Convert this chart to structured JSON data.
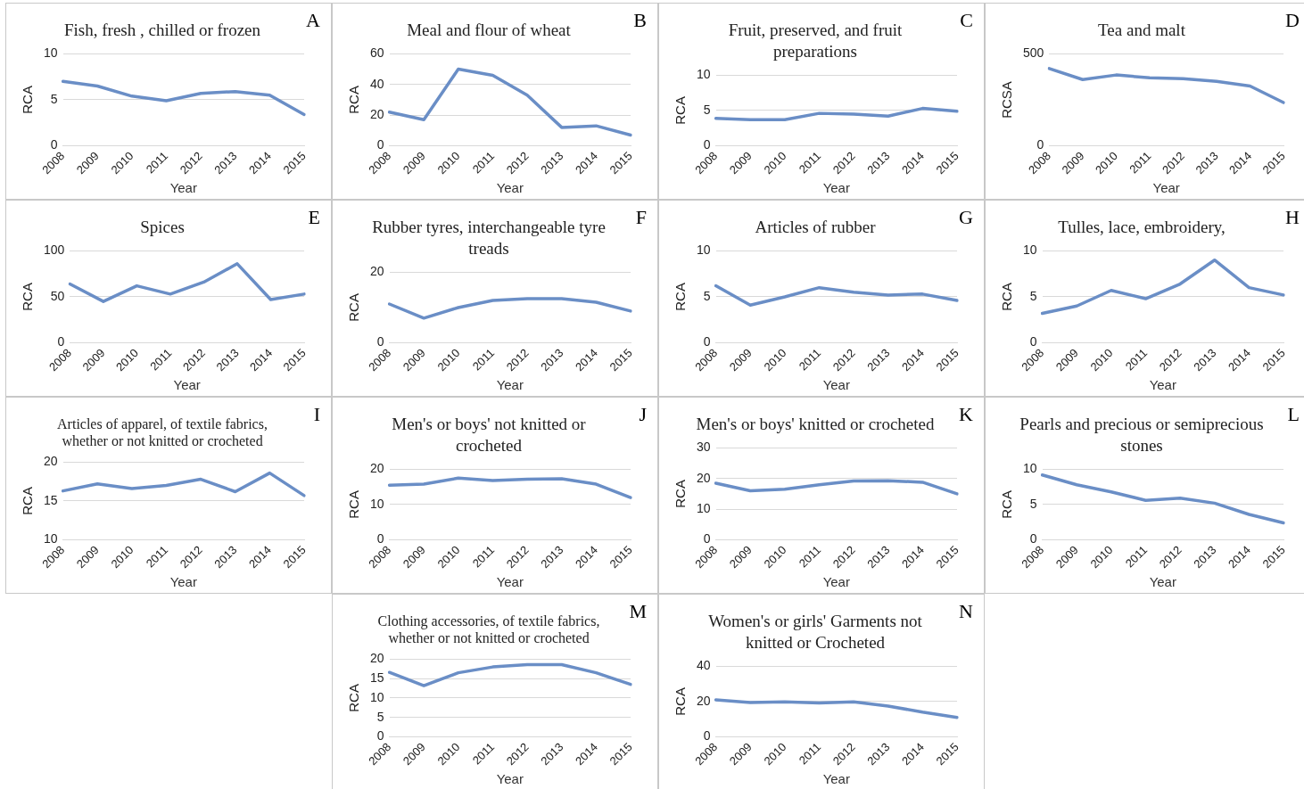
{
  "chart_data": [
    {
      "type": "line",
      "title": "Fish, fresh , chilled or frozen",
      "xlabel": "Year",
      "ylabel": "RCA",
      "annotations": [
        "A"
      ],
      "categories": [
        "2008",
        "2009",
        "2010",
        "2011",
        "2012",
        "2013",
        "2014",
        "2015"
      ],
      "series": [
        {
          "color": "#6a8ec6",
          "values": [
            7,
            6.5,
            5.4,
            4.9,
            5.7,
            5.9,
            5.5,
            3.4
          ]
        }
      ],
      "ylim": [
        0,
        10
      ],
      "yticks": [
        0,
        5,
        10
      ],
      "grid": "y",
      "legend": false,
      "marker": "none"
    },
    {
      "type": "line",
      "title": "Meal and flour of wheat",
      "xlabel": "Year",
      "ylabel": "RCA",
      "annotations": [
        "B"
      ],
      "categories": [
        "2008",
        "2009",
        "2010",
        "2011",
        "2012",
        "2013",
        "2014",
        "2015"
      ],
      "series": [
        {
          "color": "#6a8ec6",
          "values": [
            22,
            17,
            50,
            46,
            33,
            12,
            13,
            7
          ]
        }
      ],
      "ylim": [
        0,
        60
      ],
      "yticks": [
        0,
        20,
        40,
        60
      ],
      "grid": "y",
      "legend": false,
      "marker": "none"
    },
    {
      "type": "line",
      "title": "Fruit, preserved, and fruit preparations",
      "xlabel": "Year",
      "ylabel": "RCA",
      "annotations": [
        "C"
      ],
      "categories": [
        "2008",
        "2009",
        "2010",
        "2011",
        "2012",
        "2013",
        "2014",
        "2015"
      ],
      "series": [
        {
          "color": "#6a8ec6",
          "values": [
            3.9,
            3.7,
            3.7,
            4.6,
            4.5,
            4.2,
            5.3,
            4.9
          ]
        }
      ],
      "ylim": [
        0,
        10
      ],
      "yticks": [
        0,
        5,
        10
      ],
      "grid": "y",
      "legend": false,
      "marker": "none"
    },
    {
      "type": "line",
      "title": "Tea and malt",
      "xlabel": "Year",
      "ylabel": "RCSA",
      "annotations": [
        "D"
      ],
      "categories": [
        "2008",
        "2009",
        "2010",
        "2011",
        "2012",
        "2013",
        "2014",
        "2015"
      ],
      "series": [
        {
          "color": "#6a8ec6",
          "values": [
            420,
            360,
            385,
            370,
            365,
            350,
            325,
            235
          ]
        }
      ],
      "ylim": [
        0,
        500
      ],
      "yticks": [
        0,
        500
      ],
      "grid": "y",
      "legend": false,
      "marker": "none"
    },
    {
      "type": "line",
      "title": "Spices",
      "xlabel": "Year",
      "ylabel": "RCA",
      "annotations": [
        "E"
      ],
      "categories": [
        "2008",
        "2009",
        "2010",
        "2011",
        "2012",
        "2013",
        "2014",
        "2015"
      ],
      "series": [
        {
          "color": "#6a8ec6",
          "values": [
            64,
            45,
            62,
            53,
            66,
            86,
            47,
            53
          ]
        }
      ],
      "ylim": [
        0,
        100
      ],
      "yticks": [
        0,
        50,
        100
      ],
      "grid": "y",
      "legend": false,
      "marker": "none"
    },
    {
      "type": "line",
      "title": "Rubber tyres, interchangeable tyre treads",
      "xlabel": "Year",
      "ylabel": "RCA",
      "annotations": [
        "F"
      ],
      "categories": [
        "2008",
        "2009",
        "2010",
        "2011",
        "2012",
        "2013",
        "2014",
        "2015"
      ],
      "series": [
        {
          "color": "#6a8ec6",
          "values": [
            11,
            7,
            10,
            12,
            12.5,
            12.5,
            11.5,
            9
          ]
        }
      ],
      "ylim": [
        0,
        20
      ],
      "yticks": [
        0,
        20
      ],
      "grid": "y",
      "legend": false,
      "marker": "none"
    },
    {
      "type": "line",
      "title": "Articles of rubber",
      "xlabel": "Year",
      "ylabel": "RCA",
      "annotations": [
        "G"
      ],
      "categories": [
        "2008",
        "2009",
        "2010",
        "2011",
        "2012",
        "2013",
        "2014",
        "2015"
      ],
      "series": [
        {
          "color": "#6a8ec6",
          "values": [
            6.2,
            4.1,
            5,
            6,
            5.5,
            5.2,
            5.3,
            4.6
          ]
        }
      ],
      "ylim": [
        0,
        10
      ],
      "yticks": [
        0,
        5,
        10
      ],
      "grid": "y",
      "legend": false,
      "marker": "none"
    },
    {
      "type": "line",
      "title": "Tulles, lace, embroidery,",
      "xlabel": "Year",
      "ylabel": "RCA",
      "annotations": [
        "H"
      ],
      "categories": [
        "2008",
        "2009",
        "2010",
        "2011",
        "2012",
        "2013",
        "2014",
        "2015"
      ],
      "series": [
        {
          "color": "#6a8ec6",
          "values": [
            3.2,
            4,
            5.7,
            4.8,
            6.4,
            9,
            6,
            5.2
          ]
        }
      ],
      "ylim": [
        0,
        10
      ],
      "yticks": [
        0,
        5,
        10
      ],
      "grid": "y",
      "legend": false,
      "marker": "none"
    },
    {
      "type": "line",
      "title": "Articles of apparel, of textile fabrics, whether or not knitted or crocheted",
      "xlabel": "Year",
      "ylabel": "RCA",
      "annotations": [
        "I"
      ],
      "categories": [
        "2008",
        "2009",
        "2010",
        "2011",
        "2012",
        "2013",
        "2014",
        "2015"
      ],
      "series": [
        {
          "color": "#6a8ec6",
          "values": [
            16.3,
            17.2,
            16.6,
            17,
            17.8,
            16.2,
            18.6,
            15.7
          ]
        }
      ],
      "ylim": [
        10,
        20
      ],
      "yticks": [
        10,
        15,
        20
      ],
      "grid": "y",
      "legend": false,
      "marker": "none"
    },
    {
      "type": "line",
      "title": "Men's or boys' not knitted or crocheted",
      "xlabel": "Year",
      "ylabel": "RCA",
      "annotations": [
        "J"
      ],
      "categories": [
        "2008",
        "2009",
        "2010",
        "2011",
        "2012",
        "2013",
        "2014",
        "2015"
      ],
      "series": [
        {
          "color": "#6a8ec6",
          "values": [
            15.5,
            15.8,
            17.5,
            16.8,
            17.2,
            17.3,
            15.8,
            12
          ]
        }
      ],
      "ylim": [
        0,
        20
      ],
      "yticks": [
        0,
        10,
        20
      ],
      "grid": "y",
      "legend": false,
      "marker": "none"
    },
    {
      "type": "line",
      "title": "Men's or boys' knitted or crocheted",
      "xlabel": "Year",
      "ylabel": "RCA",
      "annotations": [
        "K"
      ],
      "categories": [
        "2008",
        "2009",
        "2010",
        "2011",
        "2012",
        "2013",
        "2014",
        "2015"
      ],
      "series": [
        {
          "color": "#6a8ec6",
          "values": [
            18.5,
            16,
            16.5,
            18,
            19.2,
            19.3,
            18.8,
            15
          ]
        }
      ],
      "ylim": [
        0,
        30
      ],
      "yticks": [
        0,
        10,
        20,
        30
      ],
      "grid": "y",
      "legend": false,
      "marker": "none"
    },
    {
      "type": "line",
      "title": "Pearls and precious or semiprecious stones",
      "xlabel": "Year",
      "ylabel": "RCA",
      "annotations": [
        "L"
      ],
      "categories": [
        "2008",
        "2009",
        "2010",
        "2011",
        "2012",
        "2013",
        "2014",
        "2015"
      ],
      "series": [
        {
          "color": "#6a8ec6",
          "values": [
            9.2,
            7.8,
            6.8,
            5.6,
            5.9,
            5.2,
            3.6,
            2.4
          ]
        }
      ],
      "ylim": [
        0,
        10
      ],
      "yticks": [
        0,
        5,
        10
      ],
      "grid": "y",
      "legend": false,
      "marker": "none"
    },
    {
      "type": "line",
      "title": "Clothing accessories, of textile fabrics, whether or not knitted or crocheted",
      "xlabel": "Year",
      "ylabel": "RCA",
      "annotations": [
        "M"
      ],
      "categories": [
        "2008",
        "2009",
        "2010",
        "2011",
        "2012",
        "2013",
        "2014",
        "2015"
      ],
      "series": [
        {
          "color": "#6a8ec6",
          "values": [
            16.6,
            13.2,
            16.5,
            18,
            18.6,
            18.6,
            16.5,
            13.5
          ]
        }
      ],
      "ylim": [
        0,
        20
      ],
      "yticks": [
        0,
        5,
        10,
        15,
        20
      ],
      "grid": "y",
      "legend": false,
      "marker": "none"
    },
    {
      "type": "line",
      "title": "Women's or girls' Garments not knitted or Crocheted",
      "xlabel": "Year",
      "ylabel": "RCA",
      "annotations": [
        "N"
      ],
      "categories": [
        "2008",
        "2009",
        "2010",
        "2011",
        "2012",
        "2013",
        "2014",
        "2015"
      ],
      "series": [
        {
          "color": "#6a8ec6",
          "values": [
            21,
            19.5,
            19.8,
            19.2,
            19.8,
            17.5,
            14,
            11
          ]
        }
      ],
      "ylim": [
        0,
        40
      ],
      "yticks": [
        0,
        20,
        40
      ],
      "grid": "y",
      "legend": false,
      "marker": "none"
    }
  ]
}
